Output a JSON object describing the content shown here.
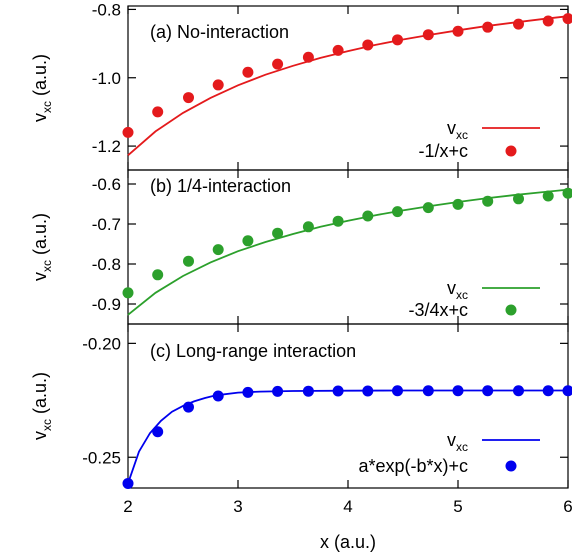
{
  "xlabel": "x (a.u.)",
  "chart_data": [
    {
      "type": "line",
      "panel_label": "(a) No-interaction",
      "ylabel": "v_xc (a.u.)",
      "xlim": [
        2,
        6
      ],
      "ylim": [
        -1.27,
        -0.79
      ],
      "yticks": [
        -0.8,
        -1.0,
        -1.2
      ],
      "ytick_labels": [
        "-0.8",
        "-1.0",
        "-1.2"
      ],
      "color": "#e41a1c",
      "legend_position": "bottom-right",
      "series": [
        {
          "name": "v_xc",
          "kind": "line",
          "x": [
            2.0,
            2.25,
            2.5,
            2.75,
            3.0,
            3.25,
            3.5,
            3.75,
            4.0,
            4.25,
            4.5,
            4.75,
            5.0,
            5.25,
            5.5,
            5.75,
            6.0
          ],
          "y": [
            -1.227,
            -1.157,
            -1.103,
            -1.059,
            -1.022,
            -0.991,
            -0.965,
            -0.942,
            -0.922,
            -0.904,
            -0.888,
            -0.874,
            -0.861,
            -0.849,
            -0.839,
            -0.829,
            -0.82
          ]
        },
        {
          "name": "-1/x+c",
          "kind": "points",
          "x": [
            2.0,
            2.27,
            2.55,
            2.82,
            3.09,
            3.36,
            3.64,
            3.91,
            4.18,
            4.45,
            4.73,
            5.0,
            5.27,
            5.55,
            5.82,
            6.0
          ],
          "y": [
            -1.16,
            -1.1,
            -1.058,
            -1.021,
            -0.984,
            -0.96,
            -0.94,
            -0.92,
            -0.904,
            -0.889,
            -0.874,
            -0.864,
            -0.852,
            -0.843,
            -0.834,
            -0.827
          ]
        }
      ]
    },
    {
      "type": "line",
      "panel_label": "(b) 1/4-interaction",
      "ylabel": "v_xc (a.u.)",
      "xlim": [
        2,
        6
      ],
      "ylim": [
        -0.95,
        -0.565
      ],
      "yticks": [
        -0.6,
        -0.7,
        -0.8,
        -0.9
      ],
      "ytick_labels": [
        "-0.6",
        "-0.7",
        "-0.8",
        "-0.9"
      ],
      "color": "#2ca02c",
      "legend_position": "bottom-right",
      "series": [
        {
          "name": "v_xc",
          "kind": "line",
          "x": [
            2.0,
            2.25,
            2.5,
            2.75,
            3.0,
            3.25,
            3.5,
            3.75,
            4.0,
            4.25,
            4.5,
            4.75,
            5.0,
            5.25,
            5.5,
            5.75,
            6.0
          ],
          "y": [
            -0.927,
            -0.872,
            -0.83,
            -0.796,
            -0.768,
            -0.745,
            -0.725,
            -0.707,
            -0.692,
            -0.678,
            -0.666,
            -0.655,
            -0.645,
            -0.636,
            -0.628,
            -0.621,
            -0.614
          ]
        },
        {
          "name": "-3/4x+c",
          "kind": "points",
          "x": [
            2.0,
            2.27,
            2.55,
            2.82,
            3.09,
            3.36,
            3.64,
            3.91,
            4.18,
            4.45,
            4.73,
            5.0,
            5.27,
            5.55,
            5.82,
            6.0
          ],
          "y": [
            -0.872,
            -0.827,
            -0.793,
            -0.764,
            -0.742,
            -0.723,
            -0.707,
            -0.693,
            -0.68,
            -0.669,
            -0.659,
            -0.651,
            -0.643,
            -0.637,
            -0.63,
            -0.623
          ]
        }
      ]
    },
    {
      "type": "line",
      "panel_label": "(c) Long-range interaction",
      "ylabel": "v_xc (a.u.)",
      "xlim": [
        2,
        6
      ],
      "ylim": [
        -0.2635,
        -0.1915
      ],
      "yticks": [
        -0.2,
        -0.25
      ],
      "ytick_labels": [
        "-0.20",
        "-0.25"
      ],
      "xticks": [
        2,
        3,
        4,
        5,
        6
      ],
      "xtick_labels": [
        "2",
        "3",
        "4",
        "5",
        "6"
      ],
      "color": "#0000ee",
      "legend_position": "bottom-right",
      "series": [
        {
          "name": "v_xc",
          "kind": "line",
          "x": [
            2.0,
            2.1,
            2.2,
            2.3,
            2.4,
            2.5,
            2.6,
            2.7,
            2.8,
            3.0,
            3.2,
            3.5,
            4.0,
            4.5,
            5.0,
            5.5,
            6.0
          ],
          "y": [
            -0.2615,
            -0.2475,
            -0.2394,
            -0.234,
            -0.23,
            -0.2275,
            -0.2255,
            -0.224,
            -0.2228,
            -0.2216,
            -0.2212,
            -0.2209,
            -0.2208,
            -0.2207,
            -0.2207,
            -0.2207,
            -0.2207
          ]
        },
        {
          "name": "a*exp(-b*x)+c",
          "kind": "points",
          "x": [
            2.0,
            2.27,
            2.55,
            2.82,
            3.09,
            3.36,
            3.64,
            3.91,
            4.18,
            4.45,
            4.73,
            5.0,
            5.27,
            5.55,
            5.82,
            6.0
          ],
          "y": [
            -0.2615,
            -0.2388,
            -0.228,
            -0.2231,
            -0.2215,
            -0.2211,
            -0.221,
            -0.2209,
            -0.2209,
            -0.2208,
            -0.2208,
            -0.2208,
            -0.2208,
            -0.2208,
            -0.2208,
            -0.2208
          ]
        }
      ]
    }
  ]
}
